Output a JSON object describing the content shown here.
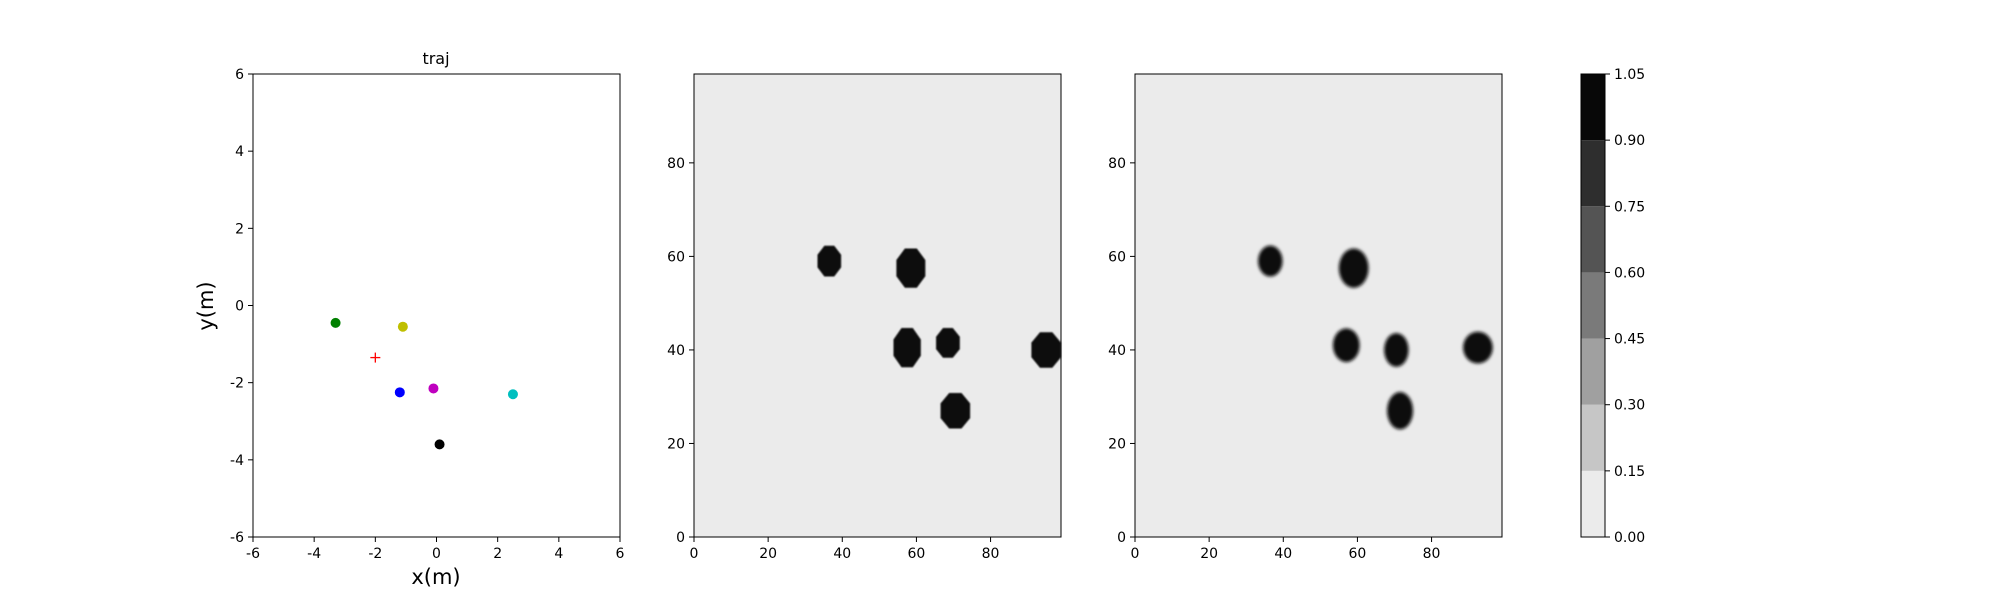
{
  "chart_data": [
    {
      "type": "scatter",
      "title": "traj",
      "xlabel": "x(m)",
      "ylabel": "y(m)",
      "xlim": [
        -6,
        6
      ],
      "ylim": [
        -6,
        6
      ],
      "xticks": [
        -6,
        -4,
        -2,
        0,
        2,
        4,
        6
      ],
      "yticks": [
        -6,
        -4,
        -2,
        0,
        2,
        4,
        6
      ],
      "grid": false,
      "points": [
        {
          "x": -3.3,
          "y": -0.45,
          "color": "#008000",
          "marker": "dot"
        },
        {
          "x": -1.1,
          "y": -0.55,
          "color": "#bfbf00",
          "marker": "dot"
        },
        {
          "x": -2.0,
          "y": -1.35,
          "color": "#ff0000",
          "marker": "plus"
        },
        {
          "x": -1.2,
          "y": -2.25,
          "color": "#0000ff",
          "marker": "dot"
        },
        {
          "x": -0.1,
          "y": -2.15,
          "color": "#bf00bf",
          "marker": "dot"
        },
        {
          "x": 2.5,
          "y": -2.3,
          "color": "#00bfbf",
          "marker": "dot"
        },
        {
          "x": 0.1,
          "y": -3.6,
          "color": "#000000",
          "marker": "dot"
        }
      ]
    },
    {
      "type": "heatmap",
      "xlim": [
        0,
        99
      ],
      "ylim": [
        0,
        99
      ],
      "xticks": [
        0,
        20,
        40,
        60,
        80
      ],
      "yticks": [
        0,
        20,
        40,
        60,
        80
      ],
      "background_value": 0.0,
      "blobs": [
        {
          "x": 36.5,
          "y": 59,
          "rx": 3.2,
          "ry": 3.3,
          "value": 1.0
        },
        {
          "x": 58.5,
          "y": 57.5,
          "rx": 3.9,
          "ry": 4.2,
          "value": 1.0
        },
        {
          "x": 57.5,
          "y": 40.5,
          "rx": 3.7,
          "ry": 4.2,
          "value": 1.0
        },
        {
          "x": 68.5,
          "y": 41.5,
          "rx": 3.2,
          "ry": 3.2,
          "value": 1.0
        },
        {
          "x": 70.5,
          "y": 27,
          "rx": 4.0,
          "ry": 3.8,
          "value": 1.0
        },
        {
          "x": 95,
          "y": 40,
          "rx": 4.0,
          "ry": 3.8,
          "value": 1.0
        }
      ]
    },
    {
      "type": "heatmap",
      "xlim": [
        0,
        99
      ],
      "ylim": [
        0,
        99
      ],
      "xticks": [
        0,
        20,
        40,
        60,
        80
      ],
      "yticks": [
        0,
        20,
        40,
        60,
        80
      ],
      "background_value": 0.0,
      "blobs": [
        {
          "x": 36.5,
          "y": 59,
          "rx": 3.3,
          "ry": 3.3,
          "value": 1.0
        },
        {
          "x": 59,
          "y": 57.5,
          "rx": 4.0,
          "ry": 4.2,
          "value": 1.0
        },
        {
          "x": 57,
          "y": 41,
          "rx": 3.6,
          "ry": 3.6,
          "value": 1.0
        },
        {
          "x": 70.5,
          "y": 40,
          "rx": 3.3,
          "ry": 3.6,
          "value": 1.0
        },
        {
          "x": 71.5,
          "y": 27,
          "rx": 3.5,
          "ry": 4.0,
          "value": 1.0
        },
        {
          "x": 92.5,
          "y": 40.5,
          "rx": 4.0,
          "ry": 3.4,
          "value": 1.0
        }
      ]
    },
    {
      "type": "colorbar",
      "levels": [
        0.0,
        0.15,
        0.3,
        0.45,
        0.6,
        0.75,
        0.9,
        1.05
      ],
      "tick_labels": [
        "0.00",
        "0.15",
        "0.30",
        "0.45",
        "0.60",
        "0.75",
        "0.90",
        "1.05"
      ],
      "colors": [
        "#ebebeb",
        "#c6c6c6",
        "#a0a0a0",
        "#7a7a7a",
        "#545454",
        "#2e2e2e",
        "#080808"
      ]
    }
  ]
}
